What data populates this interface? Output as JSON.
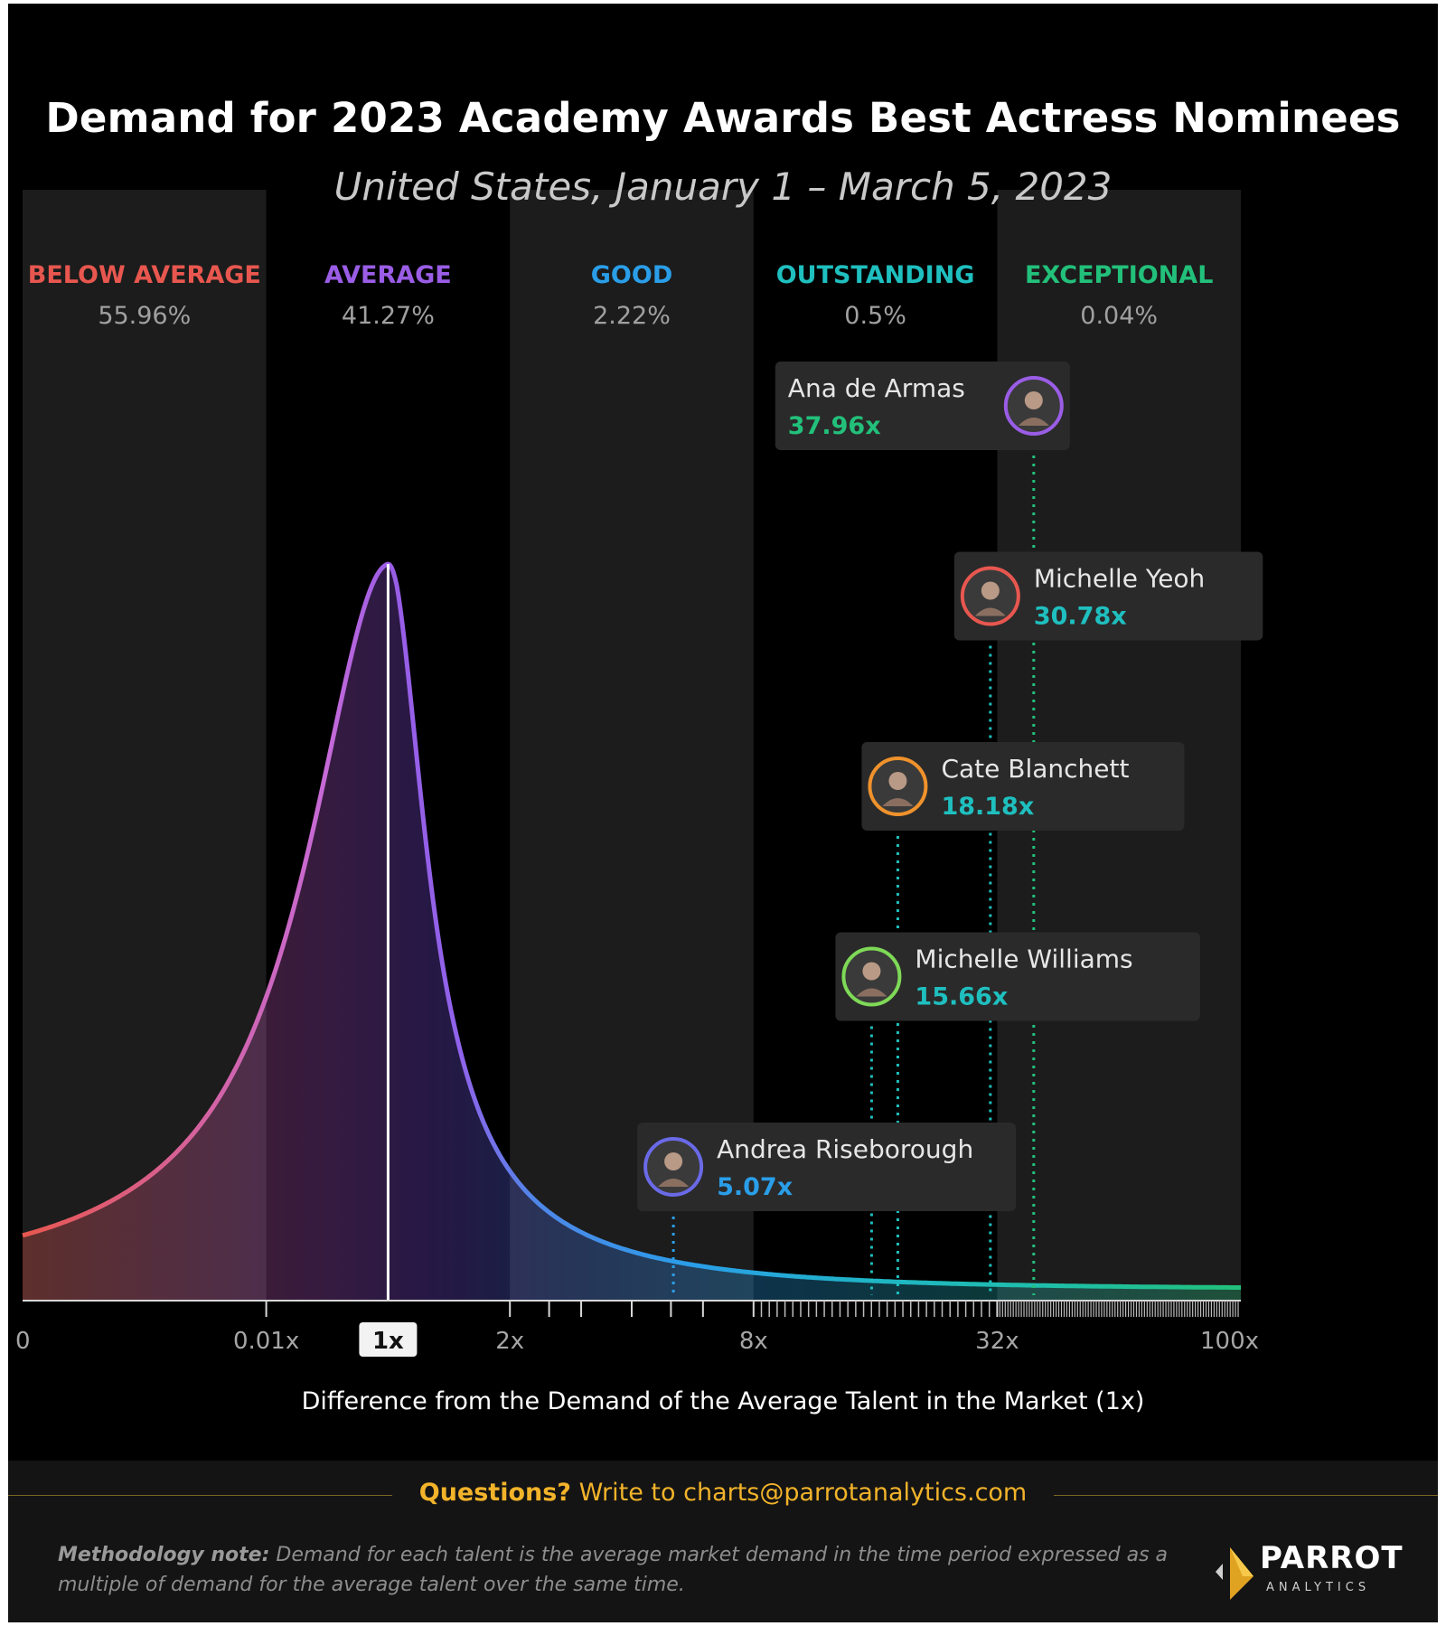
{
  "colors": {
    "below_average": "#e8574f",
    "average": "#9a5de6",
    "good": "#2a9ee8",
    "outstanding": "#1fbfbf",
    "exceptional": "#22c07a",
    "brand_gold": "#f2b32a"
  },
  "chart_data": {
    "type": "area",
    "title": "Demand for 2023 Academy Awards Best Actress Nominees",
    "subtitle": "United States, January 1 – March 5, 2023",
    "xlabel": "Difference from the Demand of the Average Talent in the Market (1x)",
    "x_scale": "piecewise (banded tiers)",
    "x_ticks": [
      "0",
      "0.01x",
      "1x",
      "2x",
      "8x",
      "32x",
      "100x"
    ],
    "highlighted_tick": "1x",
    "tiers": [
      {
        "name": "BELOW AVERAGE",
        "share": "55.96%",
        "from": 0,
        "to": 0.01,
        "color": "#e8574f"
      },
      {
        "name": "AVERAGE",
        "share": "41.27%",
        "from": 0.01,
        "to": 2,
        "color": "#9a5de6"
      },
      {
        "name": "GOOD",
        "share": "2.22%",
        "from": 2,
        "to": 8,
        "color": "#2a9ee8"
      },
      {
        "name": "OUTSTANDING",
        "share": "0.5%",
        "from": 8,
        "to": 32,
        "color": "#1fbfbf"
      },
      {
        "name": "EXCEPTIONAL",
        "share": "0.04%",
        "from": 32,
        "to": 100,
        "color": "#22c07a"
      }
    ],
    "distribution_peak_x": 1,
    "nominees": [
      {
        "name": "Ana de Armas",
        "value_label": "37.96x",
        "value": 37.96,
        "tier": "EXCEPTIONAL",
        "ring_color": "#9a5de6"
      },
      {
        "name": "Michelle Yeoh",
        "value_label": "30.78x",
        "value": 30.78,
        "tier": "OUTSTANDING",
        "ring_color": "#e8574f"
      },
      {
        "name": "Cate Blanchett",
        "value_label": "18.18x",
        "value": 18.18,
        "tier": "OUTSTANDING",
        "ring_color": "#f0922c"
      },
      {
        "name": "Michelle Williams",
        "value_label": "15.66x",
        "value": 15.66,
        "tier": "OUTSTANDING",
        "ring_color": "#7ed957"
      },
      {
        "name": "Andrea Riseborough",
        "value_label": "5.07x",
        "value": 5.07,
        "tier": "GOOD",
        "ring_color": "#6a6ae8"
      }
    ]
  },
  "footer": {
    "questions_prefix": "Questions?",
    "questions_text": " Write to charts@parrotanalytics.com",
    "method_label": "Methodology note:",
    "method_text": " Demand for each talent is the average market demand in the time period expressed as a multiple of demand for the average talent over the same time.",
    "logo_name": "PARROT",
    "logo_sub": "ANALYTICS",
    "logo_icon": "parrot-logo-icon"
  }
}
